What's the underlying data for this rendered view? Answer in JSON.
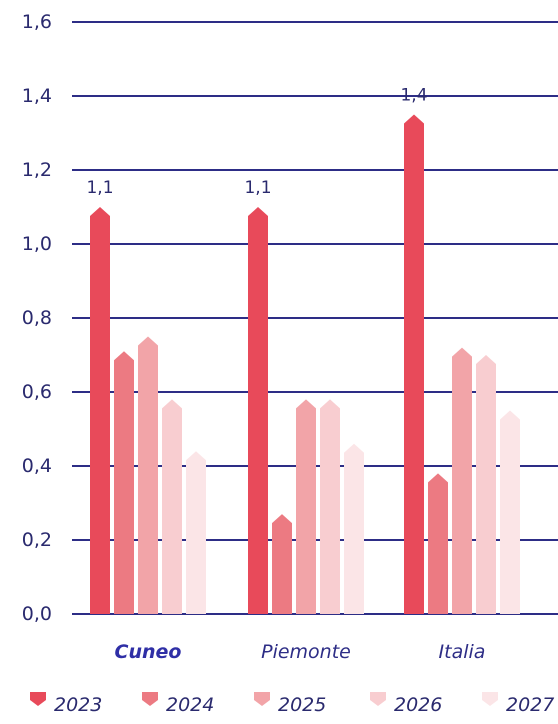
{
  "chart_data": {
    "type": "bar",
    "categories": [
      "Cuneo",
      "Piemonte",
      "Italia"
    ],
    "category_emphasis": [
      "bold",
      "normal",
      "normal"
    ],
    "ylim": [
      0,
      1.6
    ],
    "yticks": [
      "0,0",
      "0,2",
      "0,4",
      "0,6",
      "0,8",
      "1,0",
      "1,2",
      "1,4",
      "1,6"
    ],
    "grid": true,
    "gridline_color": "#2d2d86",
    "legend_position": "bottom",
    "series": [
      {
        "name": "2023",
        "color": "#e84a5a",
        "values": [
          1.1,
          1.1,
          1.35
        ]
      },
      {
        "name": "2024",
        "color": "#ec7a82",
        "values": [
          0.71,
          0.27,
          0.38
        ]
      },
      {
        "name": "2025",
        "color": "#f2a4a8",
        "values": [
          0.75,
          0.58,
          0.72
        ]
      },
      {
        "name": "2026",
        "color": "#f8cdd0",
        "values": [
          0.58,
          0.58,
          0.7
        ]
      },
      {
        "name": "2027",
        "color": "#fbe5e7",
        "values": [
          0.44,
          0.46,
          0.55
        ]
      }
    ],
    "data_labels": [
      {
        "series": 0,
        "category": 0,
        "text": "1,1"
      },
      {
        "series": 0,
        "category": 1,
        "text": "1,1"
      },
      {
        "series": 0,
        "category": 2,
        "text": "1,4"
      }
    ]
  }
}
